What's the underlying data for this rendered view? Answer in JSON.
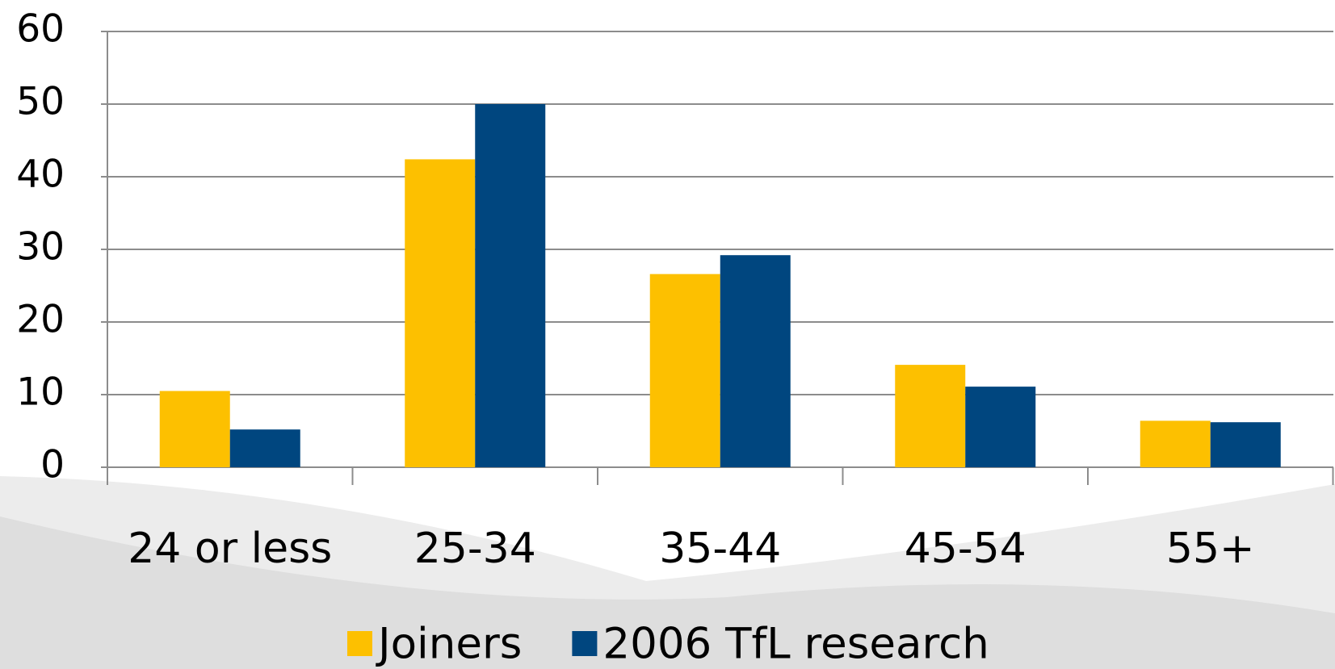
{
  "chart_data": {
    "type": "bar",
    "categories": [
      "24 or less",
      "25-34",
      "35-44",
      "45-54",
      "55+"
    ],
    "series": [
      {
        "name": "Joiners",
        "color": "#fdc000",
        "values": [
          10.5,
          42.4,
          26.6,
          14.1,
          6.4
        ]
      },
      {
        "name": "2006 TfL research",
        "color": "#00467f",
        "values": [
          5.2,
          50,
          29.2,
          11.1,
          6.2
        ]
      }
    ],
    "ylim": [
      0,
      60
    ],
    "yticks": [
      0,
      10,
      20,
      30,
      40,
      50,
      60
    ],
    "grid": true,
    "legend": "bottom"
  }
}
